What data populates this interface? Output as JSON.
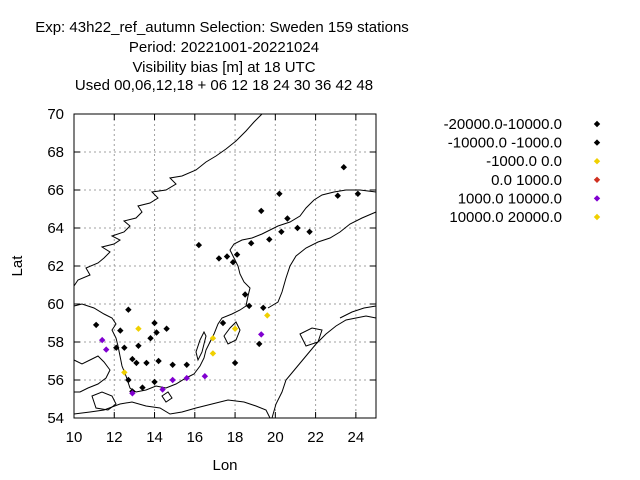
{
  "chart_data": {
    "type": "scatter",
    "title_lines": [
      "Exp: 43h22_ref_autumn   Selection: Sweden    159 stations",
      "Period: 20221001-20221024",
      "Visibility bias [m] at  18 UTC",
      "Used  00,06,12,18  + 06 12 18 24 30 36 42 48"
    ],
    "xlabel": "Lon",
    "ylabel": "Lat",
    "xlim": [
      10,
      25
    ],
    "ylim": [
      54,
      70
    ],
    "xticks": [
      10,
      12,
      14,
      16,
      18,
      20,
      22,
      24
    ],
    "yticks": [
      54,
      56,
      58,
      60,
      62,
      64,
      66,
      68,
      70
    ],
    "grid": true,
    "legend_position": "right",
    "series": [
      {
        "name": "-20000.0-10000.0",
        "color": "#000000",
        "points": [
          [
            23.4,
            67.2
          ],
          [
            24.1,
            65.8
          ],
          [
            23.1,
            65.7
          ],
          [
            20.2,
            65.8
          ],
          [
            19.3,
            64.9
          ],
          [
            20.6,
            64.5
          ],
          [
            21.1,
            64.0
          ],
          [
            20.3,
            63.8
          ],
          [
            16.2,
            63.1
          ]
        ]
      },
      {
        "name": "-10000.0 -1000.0",
        "color": "#000000",
        "points": [
          [
            21.7,
            63.8
          ],
          [
            19.7,
            63.4
          ],
          [
            18.8,
            63.2
          ],
          [
            17.2,
            62.4
          ],
          [
            17.6,
            62.5
          ],
          [
            17.9,
            62.2
          ],
          [
            18.1,
            62.6
          ],
          [
            18.5,
            60.5
          ],
          [
            19.4,
            59.8
          ],
          [
            18.7,
            59.9
          ],
          [
            12.7,
            59.7
          ],
          [
            12.3,
            58.6
          ],
          [
            11.1,
            58.9
          ],
          [
            12.1,
            57.7
          ],
          [
            12.5,
            57.7
          ],
          [
            14.0,
            59.0
          ],
          [
            14.1,
            58.5
          ],
          [
            14.6,
            58.7
          ],
          [
            13.8,
            58.2
          ],
          [
            13.2,
            57.8
          ],
          [
            12.9,
            57.1
          ],
          [
            13.1,
            56.9
          ],
          [
            13.6,
            56.9
          ],
          [
            14.2,
            57.0
          ],
          [
            14.9,
            56.8
          ],
          [
            15.6,
            56.8
          ],
          [
            12.7,
            56.0
          ],
          [
            13.4,
            55.6
          ],
          [
            12.9,
            55.4
          ],
          [
            14.0,
            55.9
          ],
          [
            17.4,
            59.0
          ],
          [
            18.0,
            56.9
          ],
          [
            19.2,
            57.9
          ]
        ]
      },
      {
        "name": "-1000.0 0.0",
        "color": "#f0d000",
        "points": [
          [
            13.2,
            58.7
          ],
          [
            12.5,
            56.4
          ],
          [
            18.0,
            58.7
          ],
          [
            16.9,
            58.2
          ],
          [
            16.9,
            57.4
          ],
          [
            19.6,
            59.4
          ]
        ]
      },
      {
        "name": "0.0 1000.0",
        "color": "#d03020",
        "points": []
      },
      {
        "name": "1000.0 10000.0",
        "color": "#8000d0",
        "points": [
          [
            11.4,
            58.1
          ],
          [
            11.6,
            57.6
          ],
          [
            12.9,
            55.3
          ],
          [
            14.4,
            55.5
          ],
          [
            14.9,
            56.0
          ],
          [
            15.6,
            56.1
          ],
          [
            16.5,
            56.2
          ],
          [
            19.3,
            58.4
          ]
        ]
      },
      {
        "name": "10000.0 20000.0",
        "color": "#f0d000",
        "points": []
      }
    ]
  }
}
